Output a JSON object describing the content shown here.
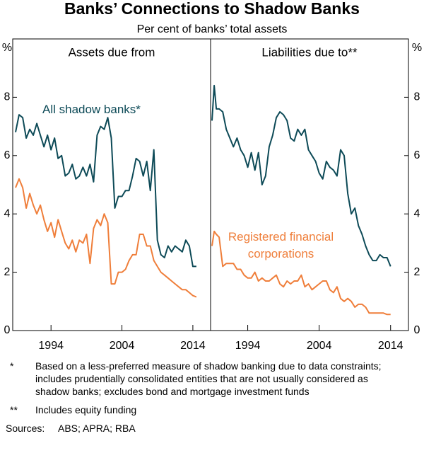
{
  "title": "Banks’ Connections to Shadow Banks",
  "subtitle": "Per cent of banks’ total assets",
  "notes": [
    {
      "mark": "*",
      "text": "Based on a less-preferred measure of shadow banking due to data constraints; includes prudentially consolidated entities that are not usually considered as shadow banks; excludes bond and mortgage investment funds"
    },
    {
      "mark": "**",
      "text": "Includes equity funding"
    }
  ],
  "sources": {
    "label": "Sources:",
    "text": "ABS; APRA; RBA"
  },
  "chart_data": [
    {
      "type": "line",
      "title": "Assets due from",
      "ylabel": "%",
      "xlim": [
        1988.6,
        2016.5
      ],
      "xticks": [
        1994,
        2004,
        2014
      ],
      "ylim": [
        0,
        10
      ],
      "yticks": [
        0,
        2,
        4,
        6,
        8
      ],
      "x": [
        1989,
        1989.5,
        1990,
        1990.5,
        1991,
        1991.5,
        1992,
        1992.5,
        1993,
        1993.5,
        1994,
        1994.5,
        1995,
        1995.5,
        1996,
        1996.5,
        1997,
        1997.5,
        1998,
        1998.5,
        1999,
        1999.5,
        2000,
        2000.5,
        2001,
        2001.5,
        2002,
        2002.5,
        2003,
        2003.5,
        2004,
        2004.5,
        2005,
        2005.5,
        2006,
        2006.5,
        2007,
        2007.5,
        2008,
        2008.5,
        2009,
        2009.5,
        2010,
        2010.5,
        2011,
        2011.5,
        2012,
        2012.5,
        2013,
        2013.5,
        2014,
        2014.5
      ],
      "series": [
        {
          "name": "All shadow banks*",
          "color": "#0d4a57",
          "values": [
            6.8,
            7.4,
            7.3,
            6.6,
            6.9,
            6.7,
            7.1,
            6.7,
            6.3,
            6.7,
            6.2,
            6.6,
            5.9,
            6.0,
            5.3,
            5.4,
            5.7,
            5.2,
            5.3,
            5.6,
            5.3,
            5.7,
            5.1,
            6.7,
            7.0,
            6.9,
            7.3,
            6.6,
            4.2,
            4.6,
            4.6,
            4.8,
            4.8,
            5.3,
            5.9,
            5.8,
            5.3,
            5.8,
            4.8,
            6.2,
            3.1,
            2.6,
            2.5,
            2.9,
            2.7,
            2.9,
            2.8,
            2.7,
            3.1,
            2.9,
            2.2,
            2.2
          ]
        },
        {
          "color": "#ef7e3a",
          "values": [
            4.9,
            5.2,
            4.9,
            4.2,
            4.7,
            4.3,
            4.0,
            4.3,
            3.8,
            3.4,
            3.7,
            3.2,
            3.8,
            3.4,
            3.0,
            2.8,
            3.1,
            2.7,
            3.1,
            3.0,
            3.3,
            2.3,
            3.5,
            3.8,
            3.6,
            4.0,
            3.7,
            1.6,
            1.6,
            2.0,
            2.0,
            2.1,
            2.4,
            2.6,
            2.6,
            3.3,
            3.3,
            2.9,
            2.9,
            2.4,
            2.2,
            2.0,
            1.9,
            1.8,
            1.7,
            1.6,
            1.5,
            1.4,
            1.4,
            1.3,
            1.2,
            1.15
          ]
        }
      ]
    },
    {
      "type": "line",
      "title": "Liabilities due to**",
      "ylabel": "%",
      "xlim": [
        1988.8,
        2016.5
      ],
      "xticks": [
        1994,
        2004,
        2014
      ],
      "ylim": [
        0,
        10
      ],
      "yticks": [
        0,
        2,
        4,
        6,
        8
      ],
      "x": [
        1989,
        1989.3,
        1989.6,
        1990,
        1990.5,
        1991,
        1991.5,
        1992,
        1992.5,
        1993,
        1993.5,
        1994,
        1994.5,
        1995,
        1995.5,
        1996,
        1996.5,
        1997,
        1997.5,
        1998,
        1998.5,
        1999,
        1999.5,
        2000,
        2000.5,
        2001,
        2001.5,
        2002,
        2002.5,
        2003,
        2003.5,
        2004,
        2004.5,
        2005,
        2005.5,
        2006,
        2006.5,
        2007,
        2007.5,
        2008,
        2008.5,
        2009,
        2009.5,
        2010,
        2010.5,
        2011,
        2011.5,
        2012,
        2012.5,
        2013,
        2013.5,
        2014
      ],
      "series": [
        {
          "color": "#0d4a57",
          "values": [
            7.2,
            8.4,
            7.6,
            7.6,
            7.5,
            6.9,
            6.6,
            6.3,
            6.6,
            6.2,
            6.0,
            5.6,
            6.1,
            5.5,
            6.1,
            5.0,
            5.3,
            6.3,
            6.7,
            7.3,
            7.5,
            7.4,
            7.2,
            6.6,
            6.5,
            6.9,
            6.7,
            6.9,
            6.2,
            6.0,
            5.8,
            5.4,
            5.2,
            5.8,
            5.6,
            5.5,
            5.3,
            6.2,
            6.0,
            4.7,
            4.0,
            4.2,
            3.6,
            3.3,
            2.9,
            2.6,
            2.4,
            2.4,
            2.6,
            2.5,
            2.5,
            2.2
          ]
        },
        {
          "name": "Registered financial corporations",
          "color": "#ef7e3a",
          "values": [
            2.9,
            3.4,
            3.3,
            3.2,
            2.2,
            2.3,
            2.3,
            2.3,
            2.1,
            2.1,
            1.9,
            1.8,
            1.8,
            2.0,
            1.7,
            1.8,
            1.7,
            1.7,
            1.8,
            1.9,
            1.6,
            1.5,
            1.7,
            1.6,
            1.7,
            1.7,
            1.9,
            1.5,
            1.6,
            1.4,
            1.5,
            1.6,
            1.7,
            1.7,
            1.4,
            1.3,
            1.5,
            1.1,
            1.0,
            1.1,
            1.0,
            0.8,
            0.9,
            0.9,
            0.8,
            0.6,
            0.6,
            0.6,
            0.6,
            0.6,
            0.55,
            0.55
          ]
        }
      ]
    }
  ]
}
